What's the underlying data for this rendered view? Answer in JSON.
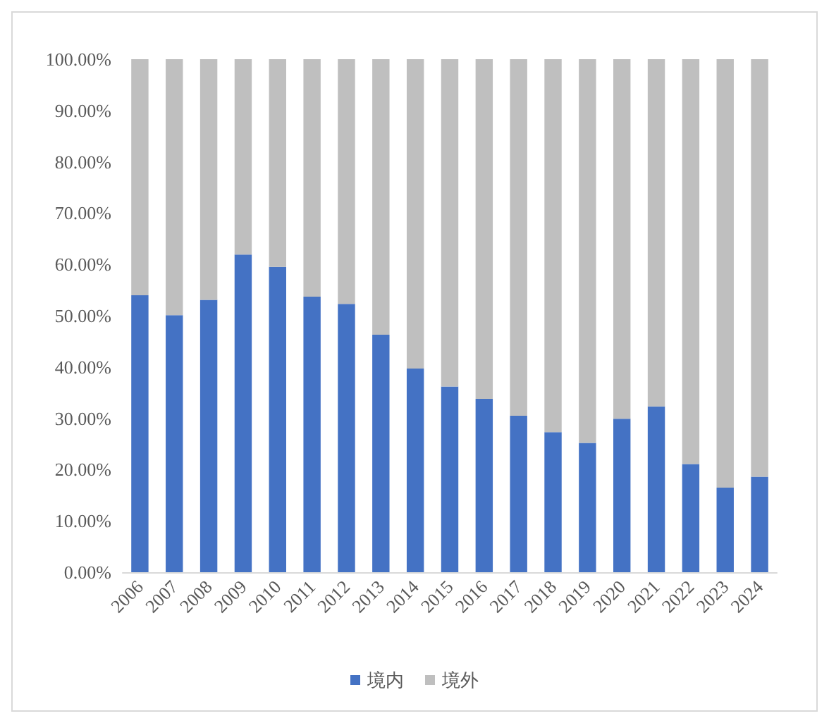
{
  "chart_data": {
    "type": "bar",
    "stacked": true,
    "categories": [
      "2006",
      "2007",
      "2008",
      "2009",
      "2010",
      "2011",
      "2012",
      "2013",
      "2014",
      "2015",
      "2016",
      "2017",
      "2018",
      "2019",
      "2020",
      "2021",
      "2022",
      "2023",
      "2024"
    ],
    "series": [
      {
        "name": "境内",
        "color": "#4472c4",
        "values": [
          54.0,
          50.1,
          53.1,
          61.9,
          59.5,
          53.7,
          52.3,
          46.3,
          39.7,
          36.2,
          33.8,
          30.5,
          27.3,
          25.2,
          29.9,
          32.3,
          21.1,
          16.5,
          18.6
        ]
      },
      {
        "name": "境外",
        "color": "#bfbfbf",
        "values": [
          46.0,
          49.9,
          46.9,
          38.1,
          40.5,
          46.3,
          47.7,
          53.7,
          60.3,
          63.8,
          66.2,
          69.5,
          72.7,
          74.8,
          70.1,
          67.7,
          78.9,
          83.5,
          81.4
        ]
      }
    ],
    "ylim": [
      0,
      100
    ],
    "yticks": [
      {
        "value": 0,
        "label": "0.00%"
      },
      {
        "value": 10,
        "label": "10.00%"
      },
      {
        "value": 20,
        "label": "20.00%"
      },
      {
        "value": 30,
        "label": "30.00%"
      },
      {
        "value": 40,
        "label": "40.00%"
      },
      {
        "value": 50,
        "label": "50.00%"
      },
      {
        "value": 60,
        "label": "60.00%"
      },
      {
        "value": 70,
        "label": "70.00%"
      },
      {
        "value": 80,
        "label": "80.00%"
      },
      {
        "value": 90,
        "label": "90.00%"
      },
      {
        "value": 100,
        "label": "100.00%"
      }
    ],
    "grid": false,
    "legend": "bottom"
  }
}
